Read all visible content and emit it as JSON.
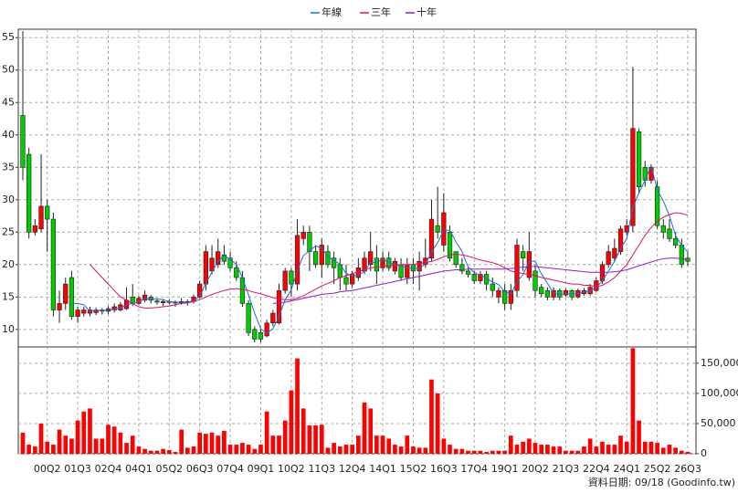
{
  "chart_data": {
    "type": "candlestick",
    "categories": [
      null,
      null,
      null,
      null,
      "00Q2",
      null,
      null,
      null,
      null,
      "01Q3",
      null,
      null,
      null,
      null,
      "02Q4",
      null,
      null,
      null,
      null,
      "04Q1",
      null,
      null,
      null,
      null,
      "05Q2",
      null,
      null,
      null,
      null,
      "06Q3",
      null,
      null,
      null,
      null,
      "07Q4",
      null,
      null,
      null,
      null,
      "09Q1",
      null,
      null,
      null,
      null,
      "10Q2",
      null,
      null,
      null,
      null,
      "11Q3",
      null,
      null,
      null,
      null,
      "12Q4",
      null,
      null,
      null,
      null,
      "14Q1",
      null,
      null,
      null,
      null,
      "15Q2",
      null,
      null,
      null,
      null,
      "16Q3",
      null,
      null,
      null,
      null,
      "17Q4",
      null,
      null,
      null,
      null,
      "19Q1",
      null,
      null,
      null,
      null,
      "20Q2",
      null,
      null,
      null,
      null,
      "21Q3",
      null,
      null,
      null,
      null,
      "22Q4",
      null,
      null,
      null,
      null,
      "24Q1",
      null,
      null,
      null,
      null,
      "25Q2",
      null,
      null,
      null,
      null,
      "26Q3"
    ],
    "open": [
      43,
      37,
      25,
      25.5,
      29,
      27,
      13,
      14,
      18,
      12,
      12.5,
      12.5,
      12.6,
      13,
      12.8,
      13,
      13,
      13.2,
      15,
      14,
      14.5,
      15,
      14.4,
      14.1,
      14.3,
      14.2,
      14.1,
      14.3,
      14.3,
      15,
      17,
      19,
      20,
      21.5,
      21,
      19.5,
      18,
      14,
      10,
      9.5,
      9,
      11,
      11,
      16,
      19,
      17,
      24,
      25,
      22,
      20,
      22,
      21,
      20,
      18,
      17,
      18,
      19,
      20,
      21,
      19.5,
      21,
      19,
      20,
      18,
      20,
      19,
      20,
      21,
      26,
      23,
      25,
      22,
      20,
      19,
      18.5,
      17.5,
      18.5,
      17,
      15,
      16,
      14,
      16,
      22,
      18,
      19,
      16.5,
      16,
      15,
      16,
      15.3,
      16,
      15,
      15.5,
      15.5,
      16,
      17.5,
      20,
      21,
      22,
      25,
      26,
      40.5,
      35,
      33,
      32,
      26,
      25.5,
      24,
      23,
      21
    ],
    "close": [
      35,
      25,
      26,
      29,
      27,
      13,
      14,
      17,
      12,
      13,
      13,
      13,
      13,
      12.8,
      13.2,
      13.5,
      13.8,
      14.5,
      14,
      14.8,
      15.3,
      14.5,
      14.2,
      14.3,
      14.2,
      14.2,
      14.3,
      14.2,
      15,
      17,
      22,
      21,
      22,
      20.5,
      19.5,
      18,
      14,
      9.5,
      8.5,
      8.5,
      11,
      12.5,
      16,
      19,
      17,
      24.5,
      25,
      22,
      20,
      23,
      20,
      19.5,
      18,
      17,
      18.5,
      19.5,
      21,
      22,
      19,
      21,
      19.5,
      20.5,
      18,
      20,
      19,
      20.5,
      21,
      27,
      25,
      28,
      21,
      20,
      19,
      18.5,
      17.5,
      18.5,
      17,
      16,
      16,
      14,
      16,
      23,
      21,
      22,
      16,
      15.5,
      15,
      16,
      15,
      16,
      15,
      16,
      16,
      16.5,
      17.5,
      20,
      22,
      22.5,
      25.5,
      26,
      41,
      32,
      33,
      35,
      26,
      25,
      24,
      23,
      20,
      20.5
    ],
    "high": [
      56,
      38,
      27,
      37,
      30,
      28,
      16,
      18,
      19,
      13.5,
      13.5,
      13.5,
      13.4,
      13.3,
      13.6,
      14,
      14.2,
      16.5,
      17,
      15.2,
      16,
      15.3,
      14.8,
      14.7,
      14.6,
      14.5,
      14.8,
      14.6,
      15.4,
      17.5,
      23,
      23,
      24,
      23,
      22,
      20.5,
      19,
      14.5,
      10.5,
      10,
      11.5,
      13,
      17,
      19.5,
      19.5,
      27,
      26,
      26,
      23,
      24,
      23,
      22,
      21,
      20,
      19,
      21,
      22,
      25,
      23,
      22,
      22,
      21,
      21,
      21,
      21,
      22,
      24,
      30,
      32,
      31,
      26,
      22,
      21,
      19.5,
      19,
      19,
      19,
      18,
      16.5,
      17,
      17,
      24,
      23,
      25,
      20,
      17,
      16.5,
      16.5,
      16.3,
      16.3,
      16.2,
      16.3,
      16.4,
      17,
      18,
      20.5,
      23,
      24,
      26,
      27,
      50.5,
      41,
      36,
      35.5,
      33,
      27,
      27,
      25,
      24,
      22
    ],
    "low": [
      33,
      24,
      24.5,
      25,
      22,
      12,
      11,
      13,
      11.5,
      11,
      12,
      12,
      12.2,
      12.3,
      12.4,
      12.6,
      12.8,
      13,
      13.6,
      13.8,
      14.2,
      14,
      13.8,
      13.6,
      13.9,
      13.5,
      13.8,
      13.7,
      14,
      14.8,
      16,
      18.5,
      19.5,
      20,
      19,
      17.5,
      13.5,
      9,
      8,
      8,
      8.8,
      10.5,
      10.8,
      15.5,
      15,
      16,
      23,
      19,
      19.5,
      18,
      19.5,
      17,
      16,
      16,
      16.5,
      17.5,
      18.5,
      19,
      17,
      19,
      19,
      18.5,
      17.5,
      17,
      17,
      16,
      19.5,
      20.5,
      24,
      22,
      20.5,
      19.5,
      18.5,
      18,
      17,
      17,
      16,
      15,
      14,
      13,
      13,
      15,
      19,
      17.5,
      15,
      15,
      14.5,
      14.5,
      14.5,
      15,
      14.5,
      14.8,
      15.2,
      15.2,
      15.8,
      17,
      19.5,
      20.5,
      21.5,
      24.5,
      25,
      31,
      32,
      32.5,
      25.5,
      24,
      23.5,
      22.5,
      19.5,
      19.8
    ],
    "up_color": "#ff0000",
    "down_color": "#00cc00",
    "ylim": [
      7.3,
      56.3
    ],
    "yticks": [
      10,
      15,
      20,
      25,
      30,
      35,
      40,
      45,
      50,
      55
    ],
    "grid": true,
    "legend": "top",
    "series": [
      {
        "name": "年線",
        "color": "#1a6fd6",
        "values": [
          null,
          null,
          null,
          null,
          null,
          null,
          null,
          null,
          14,
          14,
          13.8,
          12.8,
          13,
          12.9,
          13,
          13.1,
          13.3,
          13.8,
          14,
          14.3,
          14.7,
          14.7,
          14.7,
          14.6,
          14.3,
          14.2,
          14.2,
          14.2,
          14.4,
          15.1,
          17.1,
          18.8,
          20.5,
          21.4,
          20.8,
          20,
          18,
          15.3,
          12.5,
          10.1,
          9.4,
          10.1,
          12,
          14.6,
          16.1,
          19.1,
          21.4,
          22.1,
          22.9,
          22.5,
          21.3,
          20.6,
          20.1,
          18.6,
          18.3,
          18.3,
          19,
          20.3,
          20.4,
          20.8,
          20.4,
          20,
          19.8,
          19.5,
          19.4,
          19.4,
          20.1,
          21.9,
          23.4,
          25.3,
          25.3,
          23.5,
          22,
          19.6,
          18.8,
          18.4,
          17.9,
          17.3,
          16.9,
          15.8,
          15.5,
          17.3,
          18.5,
          20.5,
          20.5,
          18.6,
          17.1,
          15.6,
          15.4,
          15.5,
          15.5,
          15.5,
          15.8,
          15.9,
          16.5,
          17.5,
          19,
          20.5,
          22.5,
          24,
          28.8,
          31.1,
          33,
          35.3,
          31.5,
          29.8,
          27.5,
          24.5,
          23,
          21.9
        ]
      },
      {
        "name": "三年",
        "color": "#dd1166",
        "values": [
          null,
          null,
          null,
          null,
          null,
          null,
          null,
          null,
          null,
          null,
          null,
          20,
          19,
          18,
          17,
          16,
          15,
          14.5,
          14,
          13.5,
          13.3,
          13.3,
          13.4,
          13.5,
          13.6,
          13.8,
          14,
          14.1,
          14.3,
          14.6,
          15,
          15.4,
          15.7,
          16,
          16.2,
          16.3,
          16.2,
          16,
          15.7,
          15.5,
          15.2,
          14.9,
          14.7,
          14.6,
          14.6,
          14.8,
          15.2,
          15.7,
          16.2,
          16.7,
          17.1,
          17.5,
          18,
          18.3,
          18.6,
          18.9,
          19.2,
          19.5,
          19.6,
          19.7,
          19.8,
          19.9,
          20,
          20,
          20,
          20.2,
          20.3,
          20.5,
          20.8,
          21.2,
          21.5,
          21.6,
          21.5,
          21.3,
          21,
          20.7,
          20.5,
          20.3,
          20,
          19.5,
          19,
          18.8,
          18.6,
          18.5,
          18.3,
          18,
          17.8,
          17.6,
          17.4,
          17.2,
          17,
          17,
          16.8,
          16.8,
          16.6,
          16.8,
          17.3,
          18,
          19,
          20,
          21.5,
          23,
          24.5,
          25.7,
          26.7,
          27.3,
          27.7,
          28,
          27.9,
          27.6
        ]
      },
      {
        "name": "十年",
        "color": "#8a1fc9",
        "values": [
          null,
          null,
          null,
          null,
          null,
          null,
          null,
          null,
          null,
          null,
          null,
          null,
          null,
          null,
          null,
          null,
          null,
          null,
          null,
          null,
          null,
          null,
          null,
          null,
          null,
          null,
          null,
          null,
          null,
          null,
          null,
          null,
          null,
          null,
          null,
          null,
          null,
          null,
          null,
          null,
          null,
          14,
          14.1,
          14.2,
          14.4,
          14.6,
          14.8,
          15,
          15.2,
          15.4,
          15.5,
          15.6,
          15.8,
          15.9,
          16,
          16.2,
          16.4,
          16.6,
          16.8,
          17,
          17.2,
          17.4,
          17.6,
          17.8,
          18,
          18.2,
          18.4,
          18.6,
          18.8,
          19,
          19.1,
          19.2,
          19.2,
          19.3,
          19.3,
          19.3,
          19.3,
          19.3,
          19.3,
          19.3,
          19.4,
          19.5,
          19.6,
          19.7,
          19.7,
          19.6,
          19.5,
          19.4,
          19.3,
          19.2,
          19.1,
          19,
          18.9,
          18.8,
          18.8,
          18.8,
          18.8,
          18.9,
          19,
          19.2,
          19.5,
          19.8,
          20.1,
          20.4,
          20.7,
          20.9,
          21,
          21,
          20.9,
          20.7
        ]
      }
    ],
    "volume": {
      "color": "#ff0000",
      "values": [
        35000,
        15000,
        12000,
        50000,
        20000,
        15000,
        40000,
        30000,
        25000,
        55000,
        70000,
        75000,
        25000,
        25000,
        48000,
        45000,
        35000,
        18000,
        30000,
        12000,
        8000,
        5000,
        5000,
        8000,
        6000,
        3000,
        40000,
        10000,
        12000,
        35000,
        33000,
        35000,
        30000,
        38000,
        15000,
        15000,
        18000,
        15000,
        8000,
        15000,
        70000,
        30000,
        30000,
        55000,
        105000,
        158000,
        75000,
        47000,
        47000,
        48000,
        10000,
        18000,
        12000,
        15000,
        15000,
        30000,
        85000,
        75000,
        30000,
        30000,
        25000,
        15000,
        12000,
        30000,
        12000,
        10000,
        10000,
        123000,
        100000,
        25000,
        15000,
        8000,
        8000,
        5000,
        5000,
        5000,
        3000,
        5000,
        5000,
        5000,
        30000,
        15000,
        20000,
        25000,
        18000,
        15000,
        15000,
        12000,
        12000,
        5000,
        5000,
        5000,
        12000,
        25000,
        12000,
        20000,
        15000,
        15000,
        30000,
        20000,
        175000,
        55000,
        20000,
        20000,
        18000,
        10000,
        15000,
        10000,
        5000,
        3000
      ],
      "ylim": [
        0,
        177000
      ],
      "yticks": [
        0,
        {
          "value": 50000,
          "label": "50,000"
        },
        {
          "value": 100000,
          "label": "100,000"
        },
        {
          "value": 150000,
          "label": "150,000"
        }
      ]
    },
    "note": "資料日期: 09/18 (Goodinfo.tw)"
  }
}
